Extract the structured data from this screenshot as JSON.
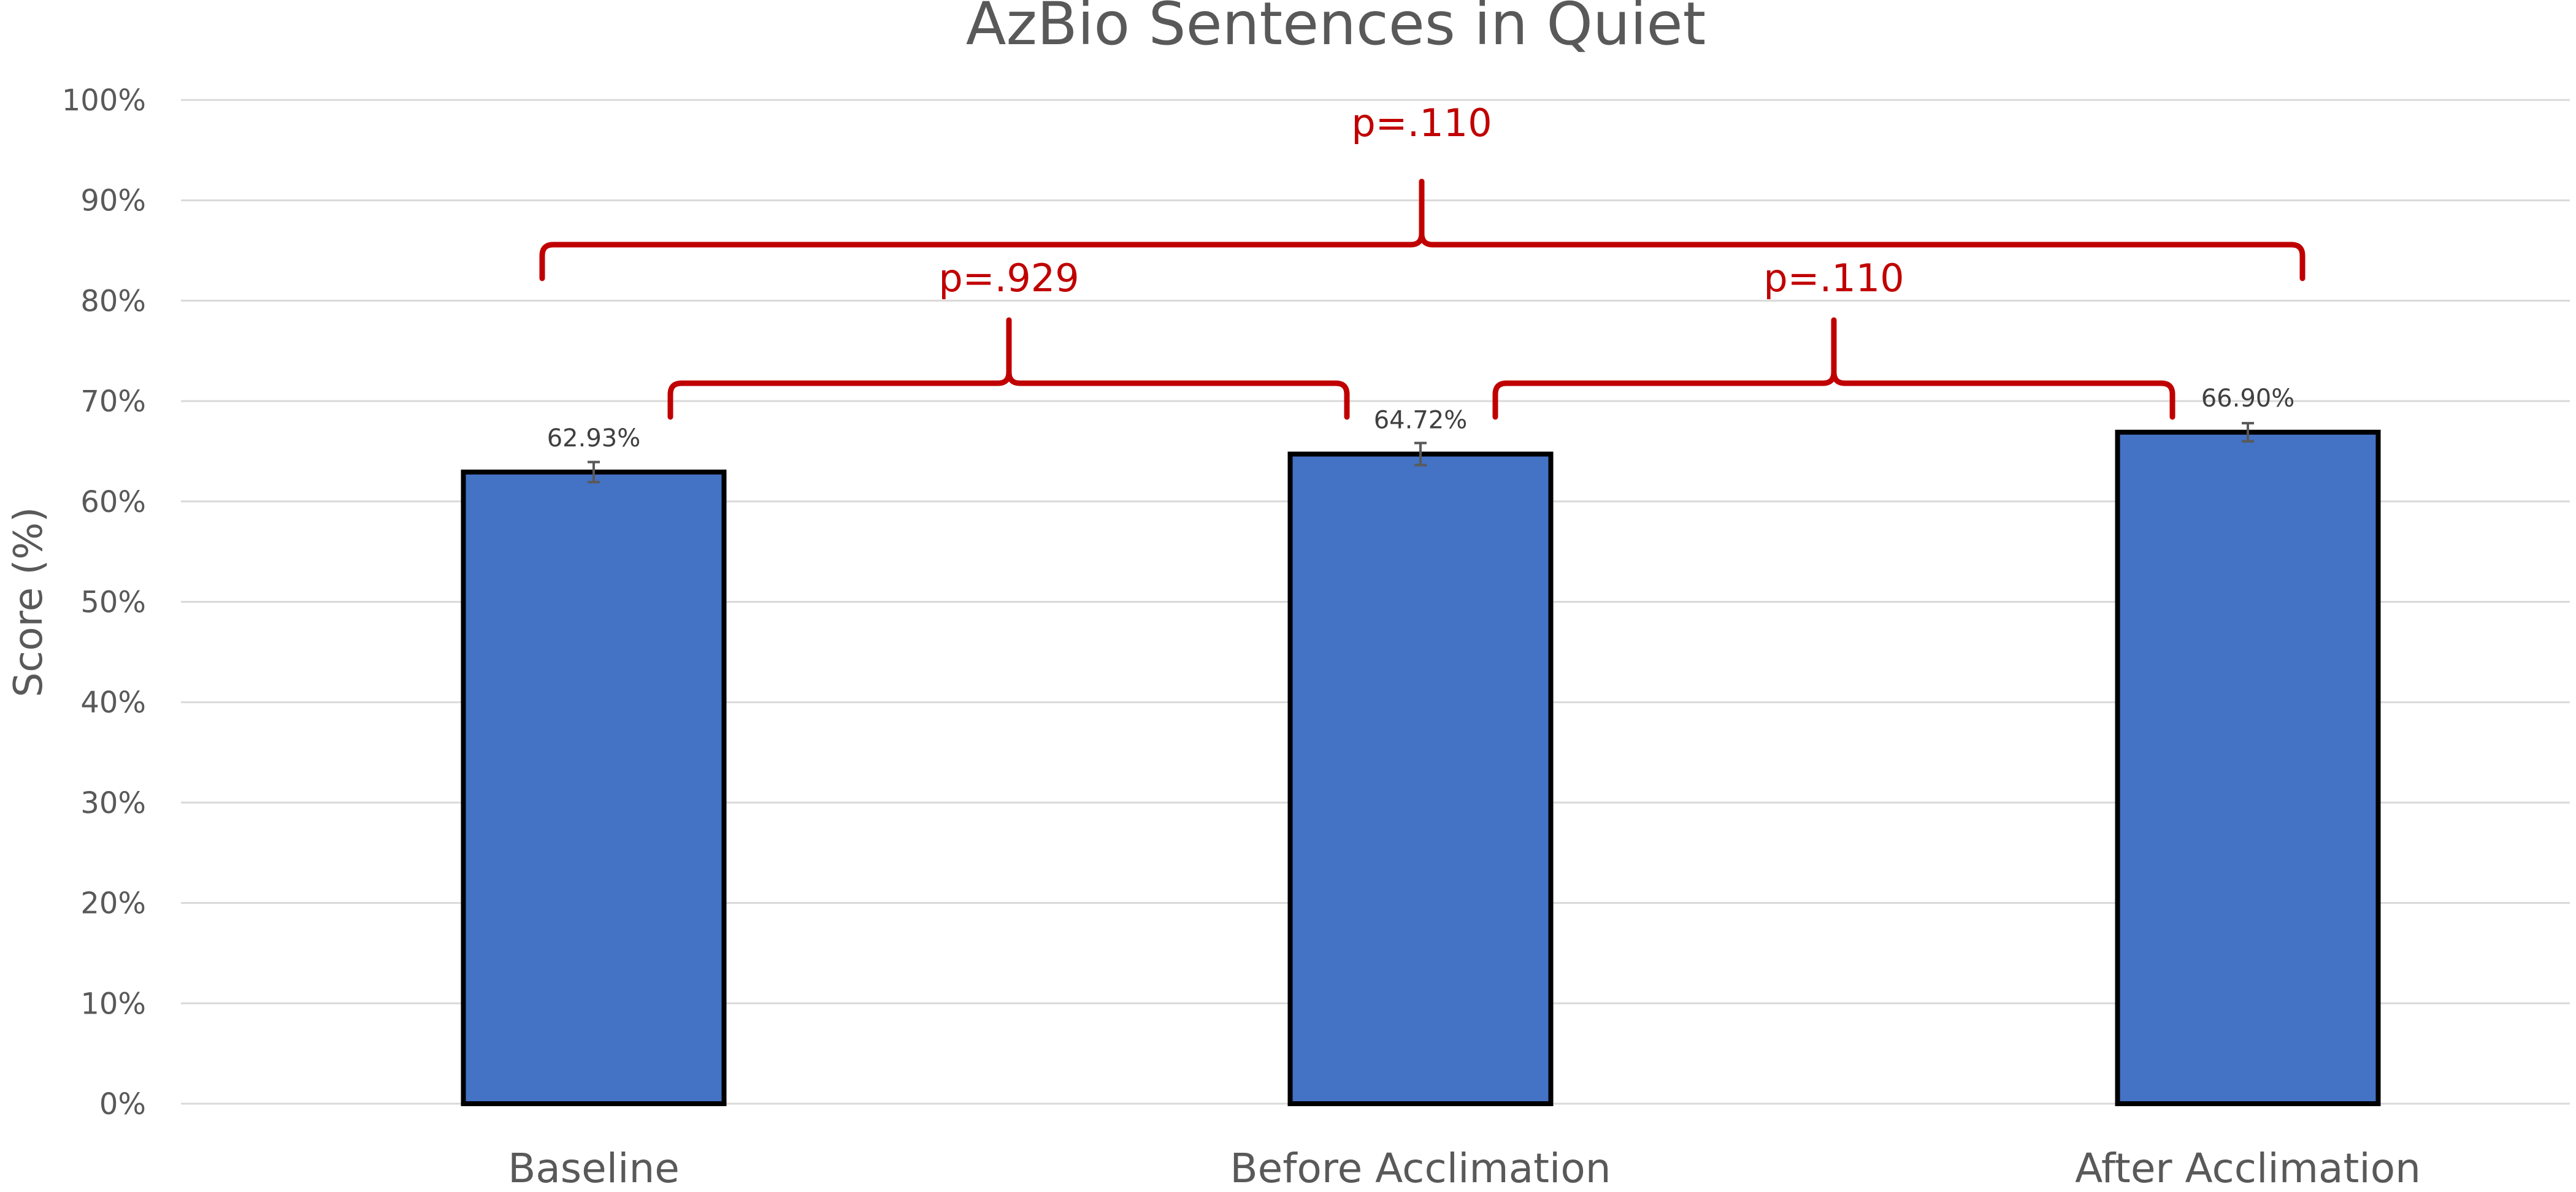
{
  "chart_data": {
    "type": "bar",
    "title": "AzBio Sentences in Quiet",
    "xlabel": "",
    "ylabel": "Score (%)",
    "ylim": [
      0,
      100
    ],
    "yticks": [
      "0%",
      "10%",
      "20%",
      "30%",
      "40%",
      "50%",
      "60%",
      "70%",
      "80%",
      "90%",
      "100%"
    ],
    "categories": [
      "Baseline",
      "Before Acclimation",
      "After Acclimation"
    ],
    "values": [
      62.93,
      64.72,
      66.9
    ],
    "value_labels": [
      "62.93%",
      "64.72%",
      "66.90%"
    ],
    "error_bars": [
      1.0,
      1.1,
      0.9
    ],
    "grid": true,
    "colors": {
      "bar": "#4472c4",
      "bar_border": "#000000",
      "annotation": "#c00000",
      "text": "#595959",
      "grid": "#d9d9d9"
    },
    "comparisons": [
      {
        "from": "Baseline",
        "to": "Before Acclimation",
        "label": "p=.929"
      },
      {
        "from": "Before Acclimation",
        "to": "After Acclimation",
        "label": "p=.110"
      },
      {
        "from": "Baseline",
        "to": "After Acclimation",
        "label": "p=.110"
      }
    ]
  }
}
